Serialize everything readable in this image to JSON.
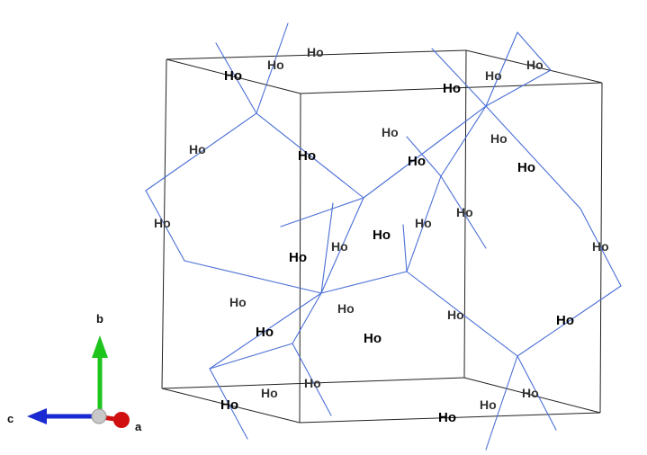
{
  "structure": {
    "element_label": "Ho",
    "bond_color": "#4a6fd6",
    "cell_edge_color": "#222222"
  },
  "axes": {
    "a": {
      "label": "a",
      "color": "#d01010"
    },
    "b": {
      "label": "b",
      "color": "#1cc41c"
    },
    "c": {
      "label": "c",
      "color": "#1a2ad0"
    },
    "origin_color": "#c8c8c8"
  }
}
